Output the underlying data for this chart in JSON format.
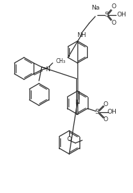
{
  "bg_color": "#ffffff",
  "line_color": "#2a2a2a",
  "line_width": 0.9,
  "figsize": [
    1.94,
    2.82
  ],
  "dpi": 100,
  "xlim": [
    0,
    194
  ],
  "ylim": [
    0,
    282
  ]
}
